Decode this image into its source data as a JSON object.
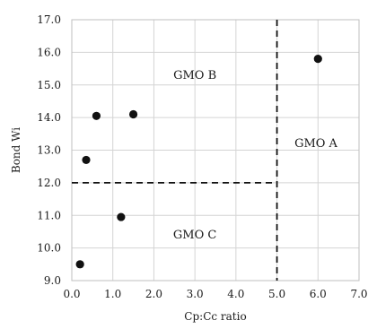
{
  "chart_data": {
    "type": "scatter",
    "title": "",
    "xlabel": "Cp:Cc ratio",
    "ylabel": "Bond Wi",
    "xlim": [
      0.0,
      7.0
    ],
    "ylim": [
      9.0,
      17.0
    ],
    "xticks": [
      "0.0",
      "1.0",
      "2.0",
      "3.0",
      "4.0",
      "5.0",
      "6.0",
      "7.0"
    ],
    "yticks": [
      "9.0",
      "10.0",
      "11.0",
      "12.0",
      "13.0",
      "14.0",
      "15.0",
      "16.0",
      "17.0"
    ],
    "grid": true,
    "legend": "none",
    "series": [
      {
        "points": [
          {
            "x": 0.2,
            "y": 9.5
          },
          {
            "x": 0.35,
            "y": 12.7
          },
          {
            "x": 0.6,
            "y": 14.05
          },
          {
            "x": 1.2,
            "y": 10.95
          },
          {
            "x": 1.5,
            "y": 14.1
          },
          {
            "x": 6.0,
            "y": 15.8
          }
        ],
        "color": "#111111"
      }
    ],
    "dividers": {
      "vertical_x": 5.0,
      "horizontal_y": 12.0
    },
    "annotations": [
      {
        "text": "GMO A",
        "x": 5.95,
        "y": 13.2
      },
      {
        "text": "GMO B",
        "x": 3.0,
        "y": 15.3
      },
      {
        "text": "GMO C",
        "x": 3.0,
        "y": 10.4
      }
    ]
  }
}
